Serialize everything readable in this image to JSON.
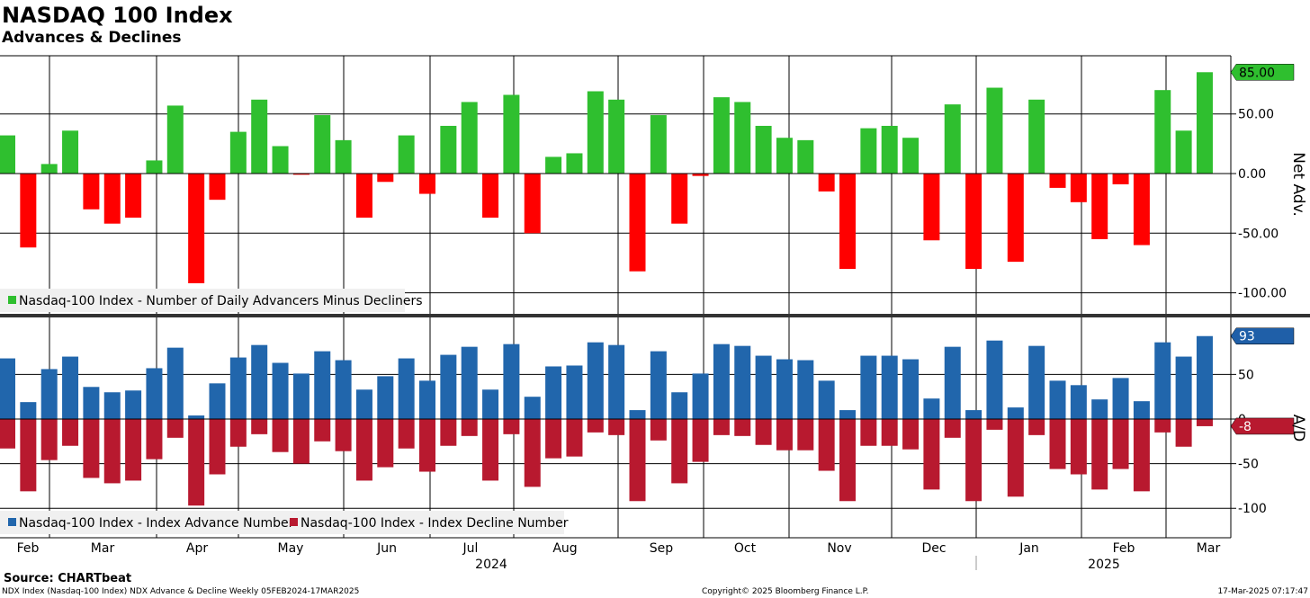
{
  "title": "NASDAQ 100 Index",
  "subtitle": "Advances & Declines",
  "colors": {
    "positive": "#2fbf2f",
    "negative": "#ff0000",
    "advance": "#2166ac",
    "decline": "#b8192f",
    "tag_blue": "#1f5fa8",
    "tag_red": "#b8192f",
    "tag_green": "#2fbf2f"
  },
  "chart_data": [
    {
      "type": "bar",
      "ylabel": "Net Adv.",
      "ylim": [
        -100,
        85
      ],
      "yticks": [
        "50.00",
        "0.00",
        "-50.00",
        "-100.00"
      ],
      "ytick_values": [
        50,
        0,
        -50,
        -100
      ],
      "last_value_tag": "85.00",
      "legend": [
        {
          "name": "Nasdaq-100 Index - Number of Daily Advancers Minus Decliners",
          "color": "#2fbf2f"
        }
      ],
      "values": [
        32,
        -62,
        8,
        36,
        -30,
        -42,
        -37,
        11,
        57,
        -92,
        -22,
        35,
        62,
        23,
        -1,
        49,
        28,
        -37,
        -7,
        32,
        -17,
        40,
        60,
        -37,
        66,
        -50,
        14,
        17,
        69,
        62,
        -82,
        49,
        -42,
        -2,
        64,
        60,
        40,
        30,
        28,
        -15,
        -80,
        38,
        40,
        30,
        -56,
        58,
        -80,
        72,
        -74,
        62,
        -12,
        -24,
        -55,
        -9,
        -60,
        70,
        36,
        85
      ]
    },
    {
      "type": "bar",
      "ylabel": "A/D",
      "ylim": [
        -100,
        100
      ],
      "yticks": [
        "50",
        "0",
        "-50",
        "-100"
      ],
      "ytick_values": [
        50,
        0,
        -50,
        -100
      ],
      "last_value_tags": [
        "93",
        "-8"
      ],
      "series": [
        {
          "name": "Nasdaq-100 Index - Index Advance Number",
          "color": "#2166ac",
          "values": [
            68,
            19,
            56,
            70,
            36,
            30,
            32,
            57,
            80,
            4,
            40,
            69,
            83,
            63,
            51,
            76,
            66,
            33,
            48,
            68,
            43,
            72,
            81,
            33,
            84,
            25,
            59,
            60,
            86,
            83,
            10,
            76,
            30,
            51,
            84,
            82,
            71,
            67,
            66,
            43,
            10,
            71,
            71,
            67,
            23,
            81,
            10,
            88,
            13,
            82,
            43,
            38,
            22,
            46,
            20,
            86,
            70,
            93
          ]
        },
        {
          "name": "Nasdaq-100 Index - Index Decline Number",
          "color": "#b8192f",
          "values": [
            -33,
            -81,
            -46,
            -30,
            -66,
            -72,
            -69,
            -45,
            -21,
            -97,
            -62,
            -31,
            -17,
            -37,
            -50,
            -25,
            -36,
            -69,
            -54,
            -33,
            -59,
            -30,
            -19,
            -69,
            -17,
            -76,
            -44,
            -42,
            -15,
            -18,
            -92,
            -24,
            -72,
            -48,
            -18,
            -19,
            -29,
            -35,
            -35,
            -58,
            -92,
            -30,
            -30,
            -34,
            -79,
            -21,
            -92,
            -12,
            -87,
            -18,
            -56,
            -62,
            -79,
            -56,
            -81,
            -15,
            -31,
            -8
          ]
        }
      ]
    }
  ],
  "x_axis": {
    "months": [
      "Feb",
      "Mar",
      "Apr",
      "May",
      "Jun",
      "Jul",
      "Aug",
      "Sep",
      "Oct",
      "Nov",
      "Dec",
      "Jan",
      "Feb",
      "Mar"
    ],
    "years": [
      "2024",
      "2025"
    ]
  },
  "source": "Source: CHARTbeat",
  "footer": {
    "left": "NDX Index (Nasdaq-100 Index) NDX Advance & Decline  Weekly 05FEB2024-17MAR2025",
    "center": "Copyright© 2025 Bloomberg Finance L.P.",
    "right": "17-Mar-2025 07:17:47"
  }
}
